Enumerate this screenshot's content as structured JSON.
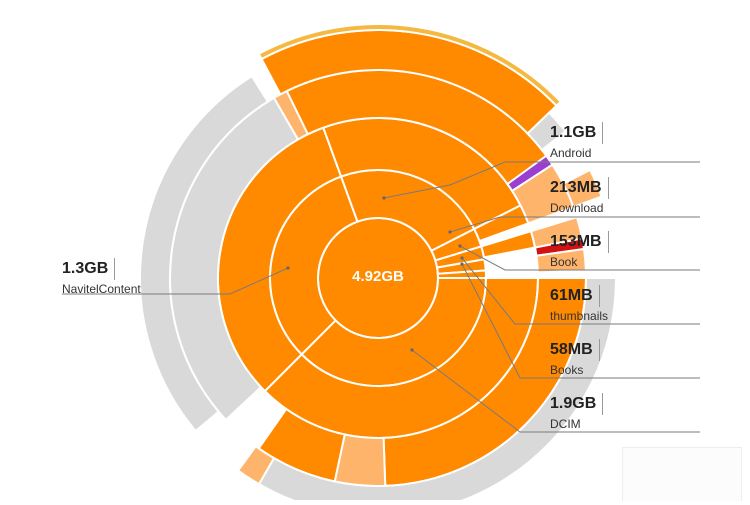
{
  "center": {
    "total": "4.92GB"
  },
  "folders": [
    {
      "size": "1.1GB",
      "name": "Android"
    },
    {
      "size": "213MB",
      "name": "Download"
    },
    {
      "size": "153MB",
      "name": "Book"
    },
    {
      "size": "61MB",
      "name": "thumbnails"
    },
    {
      "size": "58MB",
      "name": "Books"
    },
    {
      "size": "1.9GB",
      "name": "DCIM"
    },
    {
      "size": "1.3GB",
      "name": "NavitelContent"
    }
  ],
  "colors": {
    "primary": "#FF8A00",
    "light": "#FFB46B",
    "grey": "#D9D9D9",
    "rim": "#F5B942",
    "purple": "#9B3FD1",
    "red": "#D21212",
    "leader": "#7A7A7A"
  }
}
